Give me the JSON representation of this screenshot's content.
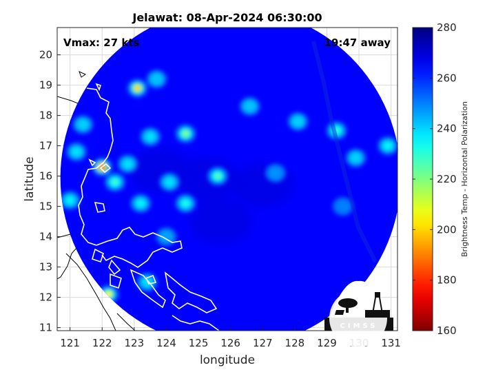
{
  "chart_data": {
    "type": "heatmap",
    "title": "Jelawat: 08-Apr-2024 06:30:00",
    "xlabel": "longitude",
    "ylabel": "latitude",
    "xlim": [
      120.6,
      131.2
    ],
    "ylim": [
      10.9,
      20.9
    ],
    "x_ticks": [
      121,
      122,
      123,
      124,
      125,
      126,
      127,
      128,
      129,
      130,
      131
    ],
    "y_ticks": [
      11,
      12,
      13,
      14,
      15,
      16,
      17,
      18,
      19,
      20
    ],
    "grid": true,
    "annotations": {
      "vmax": "Vmax: 27 kts",
      "time_offset": "19:47 away"
    },
    "swath": {
      "center": [
        126.0,
        15.95
      ],
      "radius_deg": 5.3,
      "background_value": 265
    },
    "colorbar": {
      "label": "Brightness Temp - Horizontal Polarization",
      "min": 160,
      "max": 280,
      "ticks": [
        160,
        180,
        200,
        220,
        240,
        260,
        280
      ]
    },
    "features": [
      {
        "lon": 122.0,
        "lat": 16.3,
        "value": 180
      },
      {
        "lon": 123.1,
        "lat": 18.9,
        "value": 200
      },
      {
        "lon": 124.6,
        "lat": 17.4,
        "value": 220
      },
      {
        "lon": 125.6,
        "lat": 16.0,
        "value": 225
      },
      {
        "lon": 122.4,
        "lat": 15.8,
        "value": 228
      },
      {
        "lon": 124.1,
        "lat": 15.8,
        "value": 238
      },
      {
        "lon": 122.8,
        "lat": 16.4,
        "value": 238
      },
      {
        "lon": 123.5,
        "lat": 17.3,
        "value": 238
      },
      {
        "lon": 129.3,
        "lat": 17.5,
        "value": 230
      },
      {
        "lon": 130.9,
        "lat": 17.0,
        "value": 235
      },
      {
        "lon": 128.1,
        "lat": 17.8,
        "value": 240
      },
      {
        "lon": 126.6,
        "lat": 18.3,
        "value": 242
      },
      {
        "lon": 123.7,
        "lat": 19.2,
        "value": 242
      },
      {
        "lon": 122.2,
        "lat": 12.1,
        "value": 205
      },
      {
        "lon": 123.4,
        "lat": 12.5,
        "value": 238
      },
      {
        "lon": 124.6,
        "lat": 15.1,
        "value": 232
      },
      {
        "lon": 123.2,
        "lat": 15.1,
        "value": 235
      },
      {
        "lon": 121.2,
        "lat": 16.8,
        "value": 238
      },
      {
        "lon": 121.0,
        "lat": 15.2,
        "value": 236
      },
      {
        "lon": 129.9,
        "lat": 16.6,
        "value": 240
      },
      {
        "lon": 127.4,
        "lat": 16.1,
        "value": 248
      },
      {
        "lon": 124.0,
        "lat": 14.0,
        "value": 246
      },
      {
        "lon": 129.5,
        "lat": 15.0,
        "value": 250
      },
      {
        "lon": 121.4,
        "lat": 17.7,
        "value": 240
      }
    ],
    "cold_regions": [
      {
        "lon": 123.8,
        "lat": 16.2,
        "value": 268
      },
      {
        "lon": 125.7,
        "lat": 14.5,
        "value": 268
      },
      {
        "lon": 125.3,
        "lat": 15.9,
        "value": 268
      },
      {
        "lon": 127.0,
        "lat": 15.7,
        "value": 268
      }
    ]
  },
  "logo": {
    "text": "CIMSS"
  },
  "colors": {
    "border": "#262626",
    "grid": "#d9d9d9",
    "coast_on_swath": "#ffffff",
    "coast_off_swath": "#000000"
  }
}
